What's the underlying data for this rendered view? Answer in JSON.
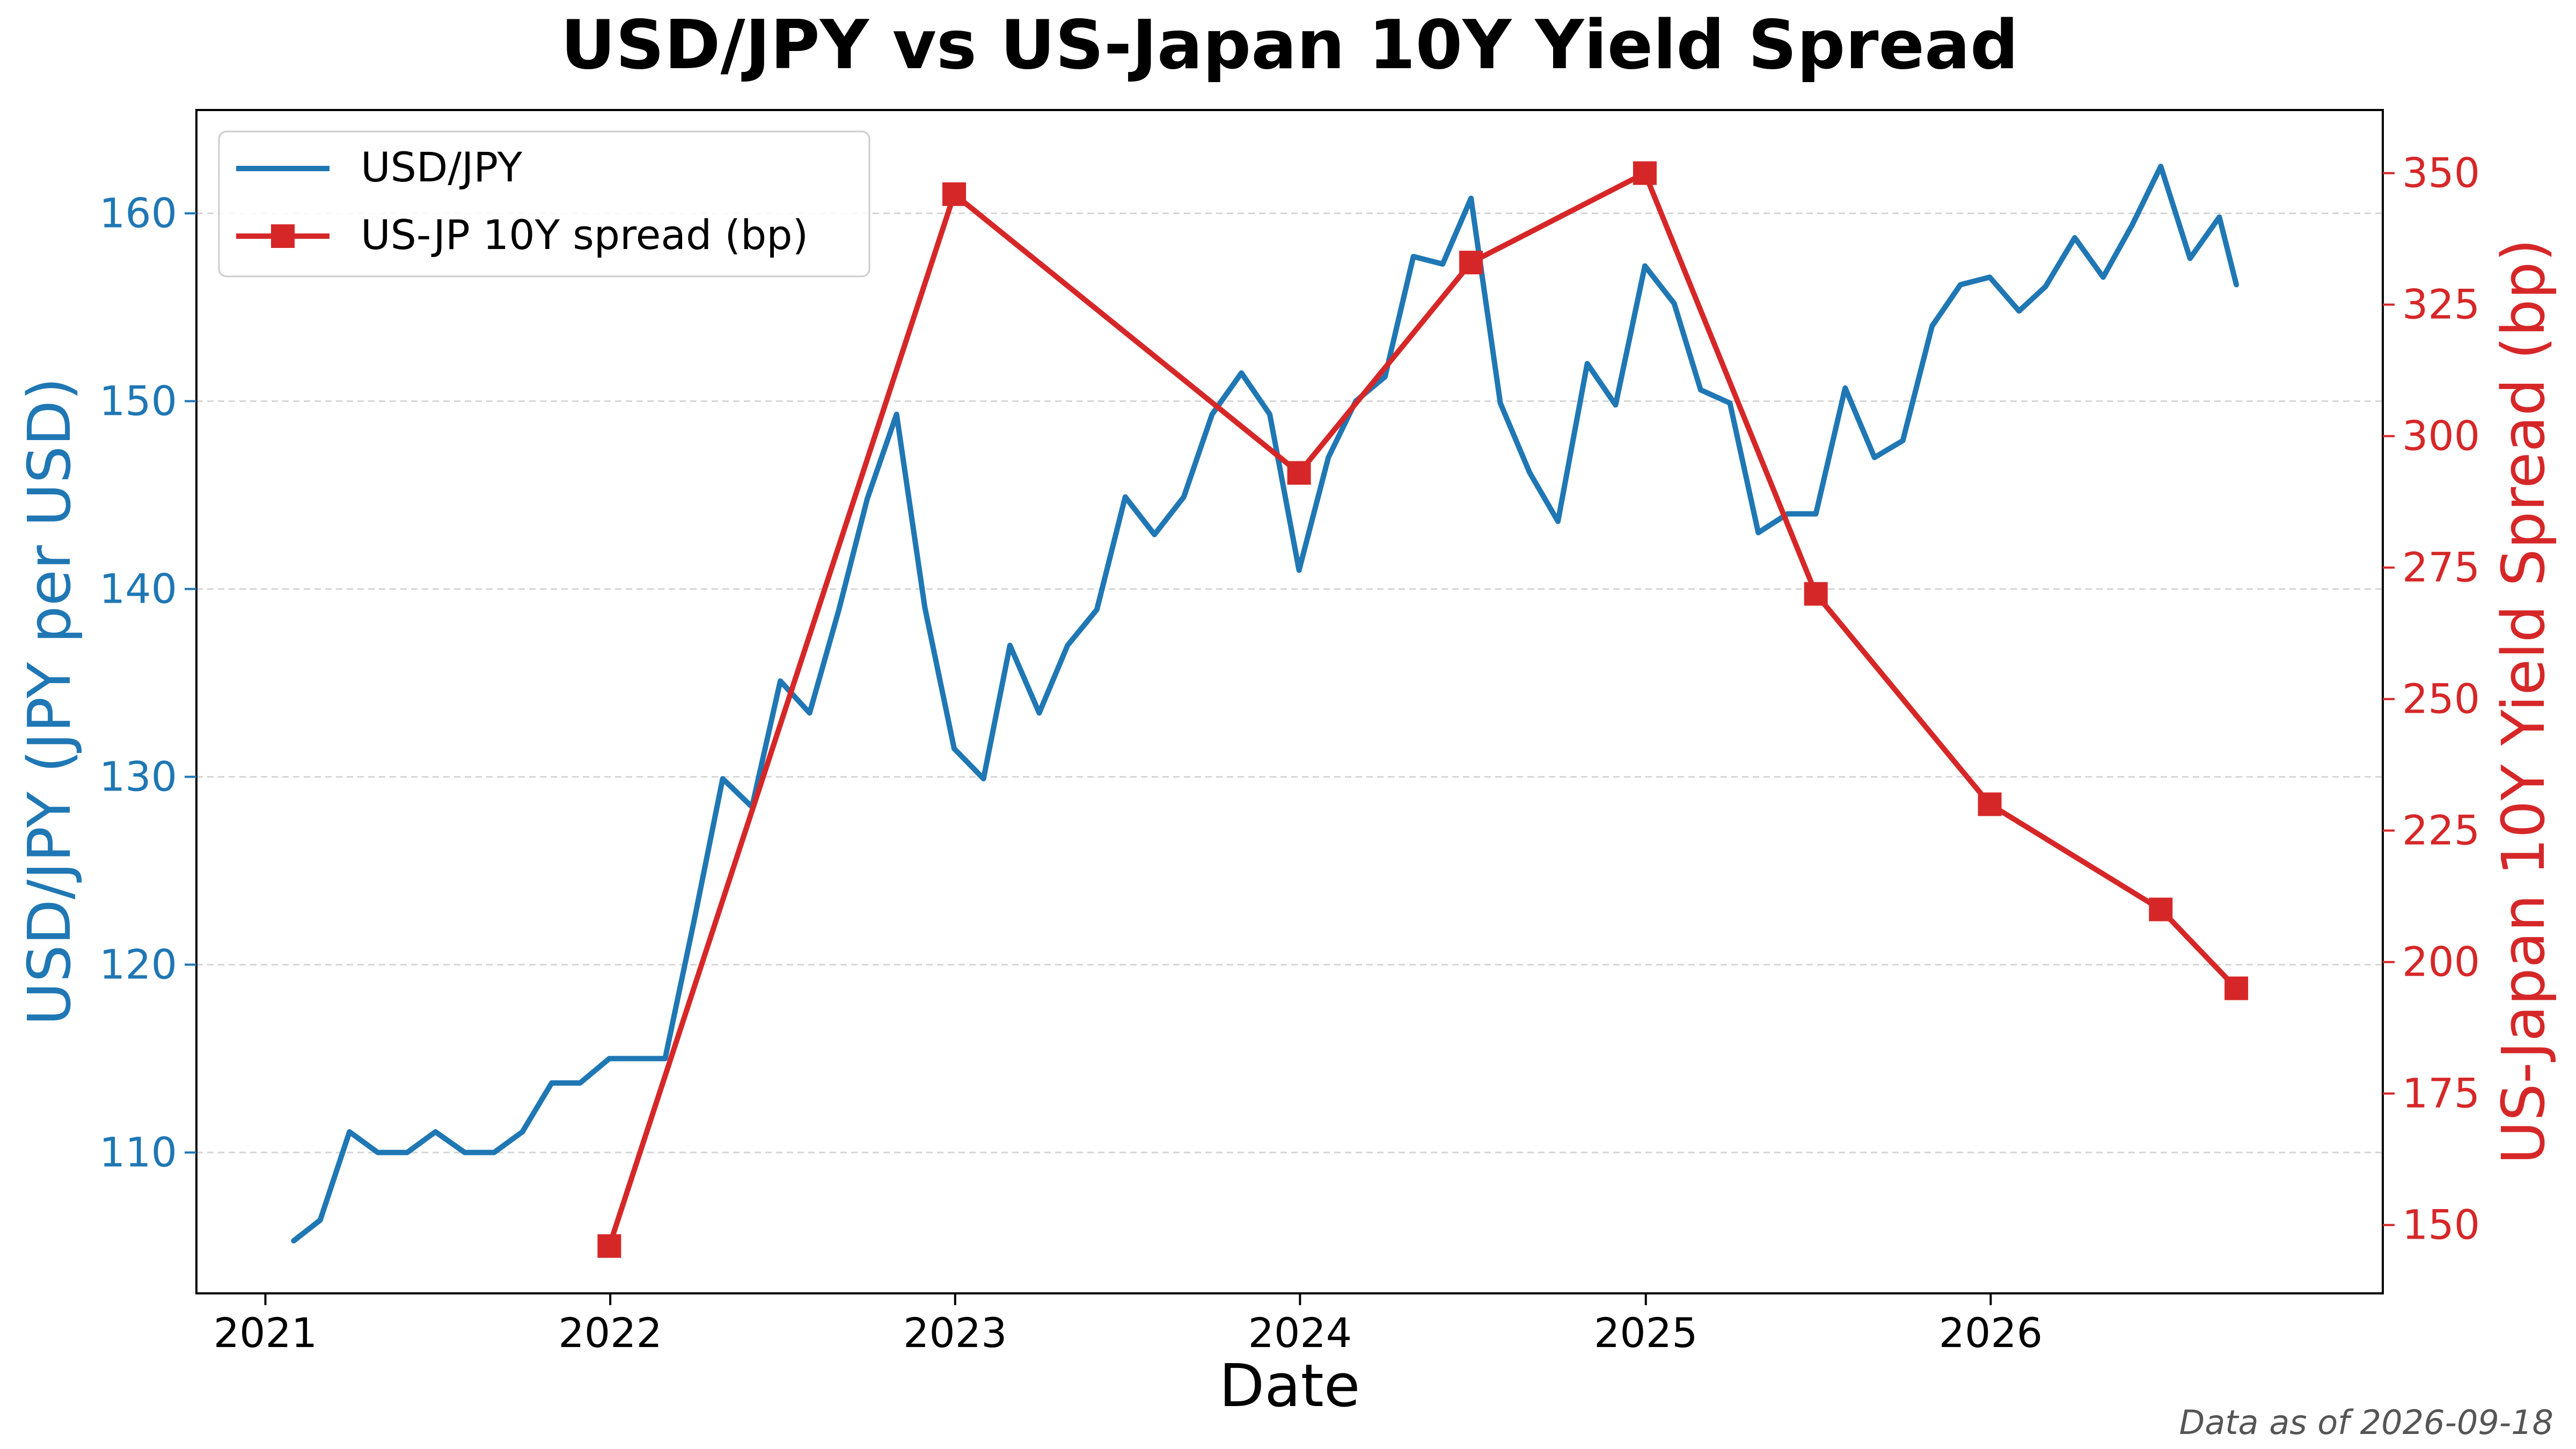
{
  "chart_data": {
    "type": "line",
    "title": "USD/JPY vs US-Japan 10Y Yield Spread",
    "xlabel": "Date",
    "ylabel_left": "USD/JPY (JPY per USD)",
    "ylabel_right": "US-Japan 10Y Yield Spread (bp)",
    "x_ticks": [
      "2021",
      "2022",
      "2023",
      "2024",
      "2025",
      "2026"
    ],
    "x_tick_values": [
      "2021-01-01",
      "2022-01-01",
      "2023-01-01",
      "2024-01-01",
      "2025-01-01",
      "2026-01-01"
    ],
    "xlim": [
      "2020-10-20",
      "2027-02-20"
    ],
    "y_left_ticks": [
      110,
      120,
      130,
      140,
      150,
      160
    ],
    "ylim_left": [
      102.5,
      165.5
    ],
    "y_right_ticks": [
      150,
      175,
      200,
      225,
      250,
      275,
      300,
      325,
      350
    ],
    "ylim_right": [
      137,
      362
    ],
    "grid": "horizontal dashed (left axis)",
    "legend_position": "top-left",
    "colors": {
      "usdjpy": "#1f77b4",
      "spread": "#d62728"
    },
    "series": [
      {
        "name": "USD/JPY",
        "axis": "left",
        "x": [
          "2021-01-31",
          "2021-02-28",
          "2021-03-31",
          "2021-04-30",
          "2021-05-31",
          "2021-06-30",
          "2021-07-31",
          "2021-08-31",
          "2021-09-30",
          "2021-10-31",
          "2021-11-30",
          "2021-12-31",
          "2022-01-31",
          "2022-02-28",
          "2022-03-31",
          "2022-04-30",
          "2022-05-31",
          "2022-06-30",
          "2022-07-31",
          "2022-08-31",
          "2022-09-30",
          "2022-10-31",
          "2022-11-30",
          "2022-12-31",
          "2023-01-31",
          "2023-02-28",
          "2023-03-31",
          "2023-04-30",
          "2023-05-31",
          "2023-06-30",
          "2023-07-31",
          "2023-08-31",
          "2023-09-30",
          "2023-10-31",
          "2023-11-30",
          "2023-12-31",
          "2024-01-31",
          "2024-02-29",
          "2024-03-31",
          "2024-04-30",
          "2024-05-31",
          "2024-06-30",
          "2024-07-31",
          "2024-08-31",
          "2024-09-30",
          "2024-10-31",
          "2024-11-30",
          "2024-12-31",
          "2025-01-31",
          "2025-02-28",
          "2025-03-31",
          "2025-04-30",
          "2025-05-31",
          "2025-06-30",
          "2025-07-31",
          "2025-08-31",
          "2025-09-30",
          "2025-10-31",
          "2025-11-30",
          "2025-12-31",
          "2026-01-31",
          "2026-02-28",
          "2026-03-31",
          "2026-04-30",
          "2026-05-31",
          "2026-06-30",
          "2026-07-31",
          "2026-08-31",
          "2026-09-18"
        ],
        "values": [
          105.3,
          106.4,
          111.1,
          110.0,
          110.0,
          111.1,
          110.0,
          110.0,
          111.1,
          113.7,
          113.7,
          115.0,
          115.0,
          115.0,
          122.4,
          129.9,
          128.4,
          135.1,
          133.4,
          138.9,
          144.8,
          149.3,
          139.0,
          131.5,
          129.9,
          137.0,
          133.4,
          137.0,
          138.9,
          144.9,
          142.9,
          144.9,
          149.3,
          151.5,
          149.3,
          141.0,
          147.0,
          150.0,
          151.3,
          157.7,
          157.3,
          160.8,
          149.9,
          146.2,
          143.6,
          152.0,
          149.8,
          157.2,
          155.2,
          150.6,
          149.9,
          143.0,
          144.0,
          144.0,
          150.7,
          147.0,
          147.9,
          154.0,
          156.2,
          156.6,
          154.8,
          156.1,
          158.7,
          156.6,
          159.4,
          162.5,
          157.6,
          159.8,
          156.2
        ]
      },
      {
        "name": "US-JP 10Y spread (bp)",
        "axis": "right",
        "x": [
          "2021-12-31",
          "2022-12-31",
          "2023-12-31",
          "2024-06-30",
          "2024-12-31",
          "2025-06-30",
          "2025-12-31",
          "2026-06-30",
          "2026-09-18"
        ],
        "values": [
          146,
          346,
          293,
          333,
          350,
          270,
          230,
          210,
          195
        ]
      }
    ]
  },
  "footnote": "Data as of 2026-09-18"
}
